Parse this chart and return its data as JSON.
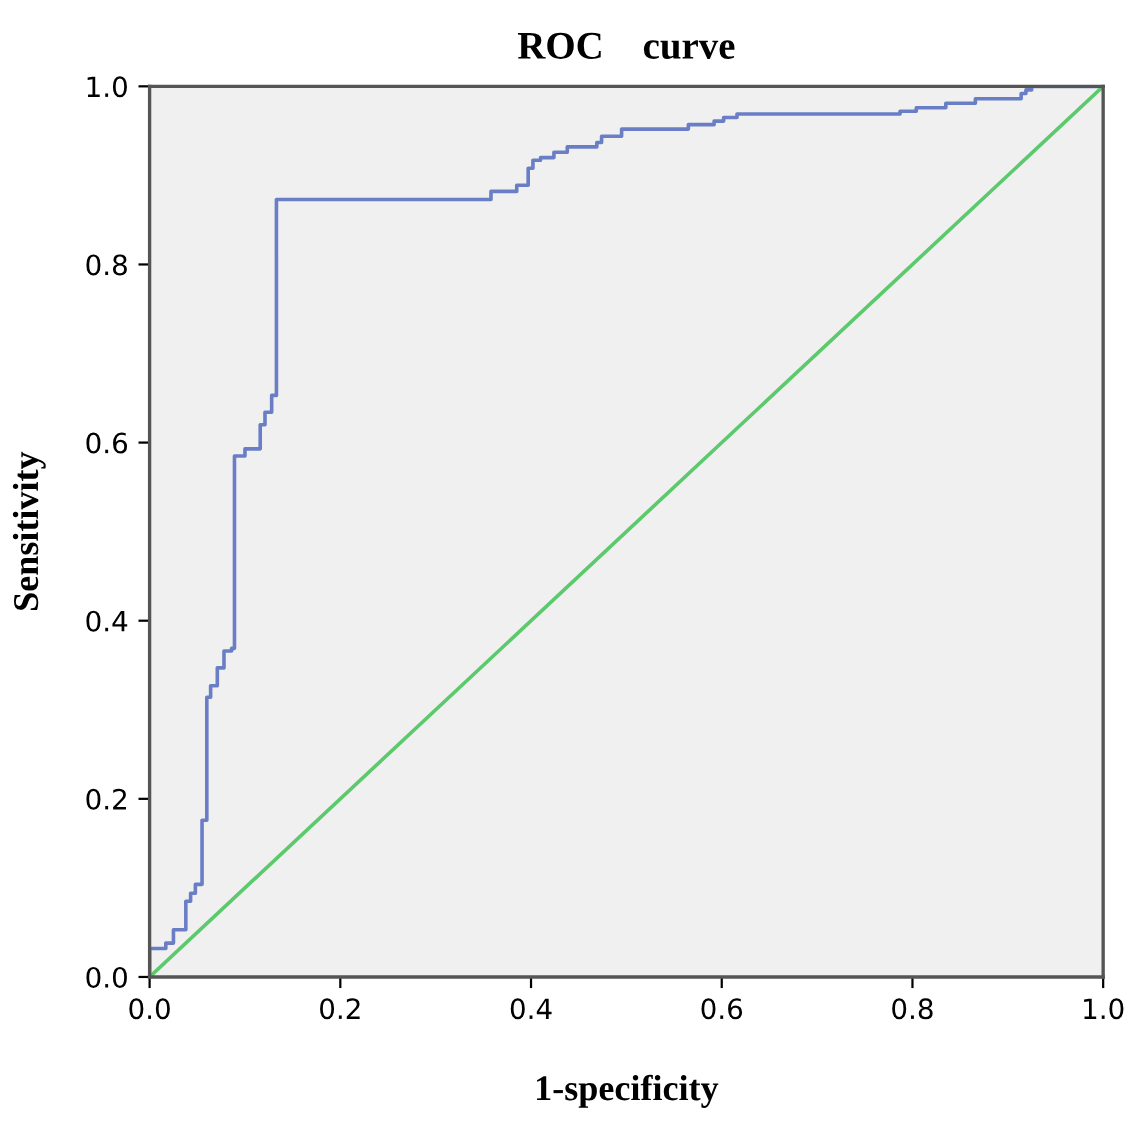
{
  "chart_data": {
    "type": "line",
    "title": "ROC    curve",
    "xlabel": "1-specificity",
    "ylabel": "Sensitivity",
    "xlim": [
      0.0,
      1.0
    ],
    "ylim": [
      0.0,
      1.0
    ],
    "xticks": [
      {
        "value": 0,
        "label": "0.0"
      },
      0.2,
      0.4,
      0.6,
      0.8,
      {
        "value": 1,
        "label": "1.0"
      }
    ],
    "yticks": [
      {
        "value": 0,
        "label": "0.0"
      },
      0.2,
      0.4,
      0.6,
      0.8,
      {
        "value": 1,
        "label": "1.0"
      }
    ],
    "grid": false,
    "legend": false,
    "marker": "none",
    "line_style": "solid",
    "series": [
      {
        "color": "#6a7ec6",
        "x": [
          0,
          0,
          0.017,
          0.017,
          0.025,
          0.025,
          0.038,
          0.038,
          0.043,
          0.043,
          0.048,
          0.048,
          0.055,
          0.055,
          0.06,
          0.06,
          0.064,
          0.064,
          0.071,
          0.071,
          0.078,
          0.078,
          0.086,
          0.086,
          0.089,
          0.089,
          0.1,
          0.1,
          0.116,
          0.116,
          0.121,
          0.121,
          0.128,
          0.128,
          0.133,
          0.133,
          0.358,
          0.358,
          0.385,
          0.385,
          0.397,
          0.397,
          0.402,
          0.402,
          0.41,
          0.41,
          0.424,
          0.424,
          0.438,
          0.438,
          0.469,
          0.469,
          0.474,
          0.474,
          0.495,
          0.495,
          0.565,
          0.565,
          0.592,
          0.592,
          0.602,
          0.602,
          0.616,
          0.616,
          0.787,
          0.787,
          0.804,
          0.804,
          0.835,
          0.835,
          0.866,
          0.866,
          0.914,
          0.914,
          0.919,
          0.919,
          0.925,
          0.925,
          1.0
        ],
        "values": [
          0,
          0.032,
          0.032,
          0.038,
          0.038,
          0.053,
          0.053,
          0.085,
          0.085,
          0.094,
          0.094,
          0.104,
          0.104,
          0.176,
          0.176,
          0.314,
          0.314,
          0.327,
          0.327,
          0.347,
          0.347,
          0.366,
          0.366,
          0.369,
          0.369,
          0.585,
          0.585,
          0.593,
          0.593,
          0.62,
          0.62,
          0.634,
          0.634,
          0.653,
          0.653,
          0.873,
          0.873,
          0.882,
          0.882,
          0.889,
          0.889,
          0.908,
          0.908,
          0.917,
          0.917,
          0.92,
          0.92,
          0.926,
          0.926,
          0.932,
          0.932,
          0.937,
          0.937,
          0.944,
          0.944,
          0.952,
          0.952,
          0.957,
          0.957,
          0.961,
          0.961,
          0.965,
          0.965,
          0.969,
          0.969,
          0.972,
          0.972,
          0.976,
          0.976,
          0.981,
          0.981,
          0.986,
          0.986,
          0.992,
          0.992,
          0.996,
          0.996,
          1.0,
          1.0
        ]
      },
      {
        "color": "#5cc96c",
        "x": [
          0,
          1
        ],
        "values": [
          0,
          1
        ]
      }
    ]
  }
}
